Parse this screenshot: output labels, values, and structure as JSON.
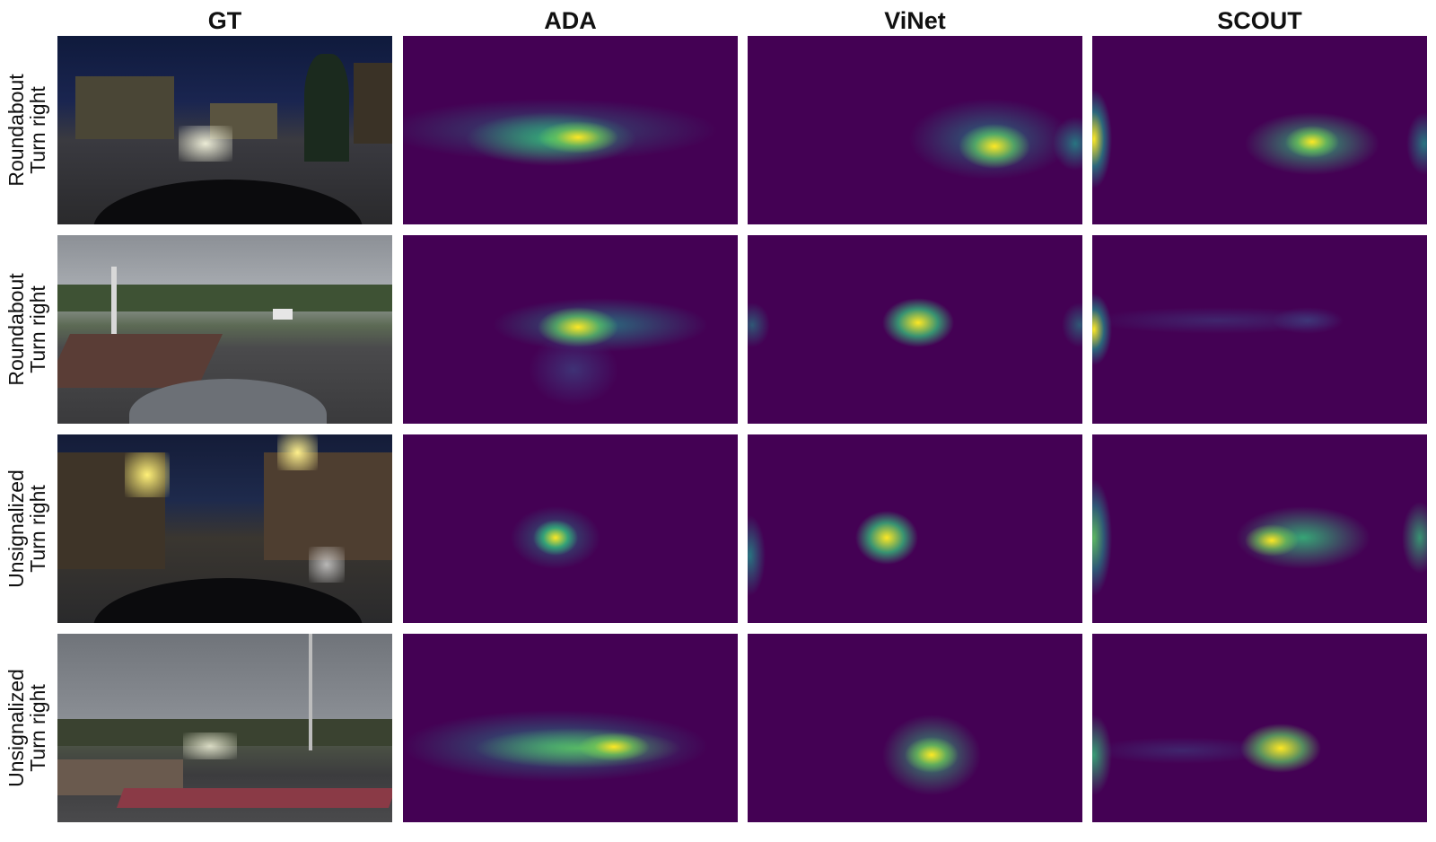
{
  "columns": [
    "GT",
    "ADA",
    "ViNet",
    "SCOUT"
  ],
  "rows": [
    {
      "line1": "Roundabout",
      "line2": "Turn right",
      "scene": "night"
    },
    {
      "line1": "Roundabout",
      "line2": "Turn right",
      "scene": "day"
    },
    {
      "line1": "Unsignalized",
      "line2": "Turn right",
      "scene": "night"
    },
    {
      "line1": "Unsignalized",
      "line2": "Turn right",
      "scene": "day"
    }
  ],
  "colormap": {
    "low": "#440154",
    "mid": "#21918c",
    "high": "#fde725"
  }
}
